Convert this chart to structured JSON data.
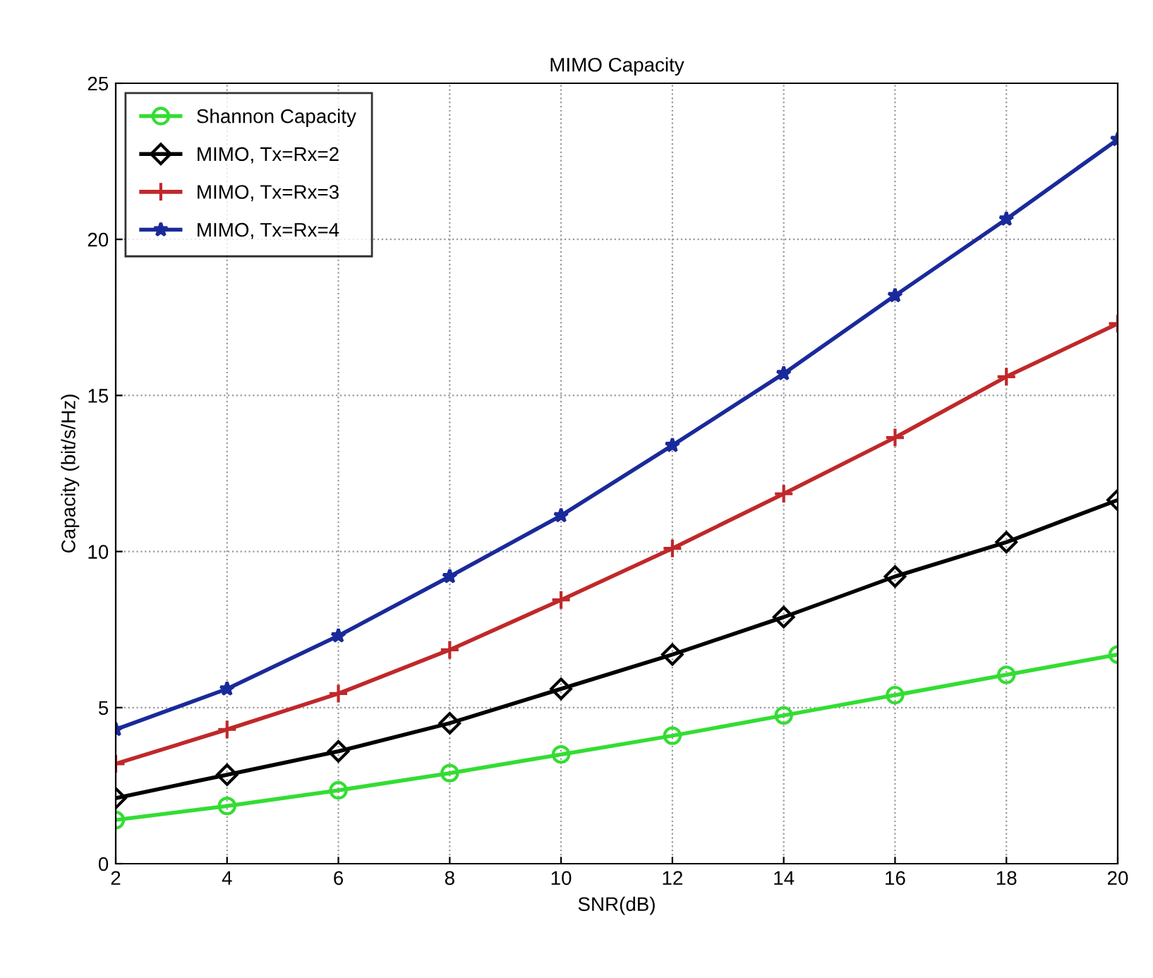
{
  "chart_data": {
    "type": "line",
    "title": "MIMO Capacity",
    "xlabel": "SNR(dB)",
    "ylabel": "Capacity (bit/s/Hz)",
    "x": [
      2,
      4,
      6,
      8,
      10,
      12,
      14,
      16,
      18,
      20
    ],
    "series": [
      {
        "name": "Shannon Capacity",
        "color": "#33dd33",
        "marker": "circle",
        "values": [
          1.4,
          1.85,
          2.35,
          2.9,
          3.5,
          4.1,
          4.75,
          5.4,
          6.05,
          6.7
        ]
      },
      {
        "name": "MIMO, Tx=Rx=2",
        "color": "#000000",
        "marker": "diamond",
        "values": [
          2.1,
          2.85,
          3.6,
          4.5,
          5.6,
          6.7,
          7.9,
          9.2,
          10.3,
          11.65
        ]
      },
      {
        "name": "MIMO, Tx=Rx=3",
        "color": "#c0282a",
        "marker": "cross",
        "values": [
          3.2,
          4.3,
          5.45,
          6.85,
          8.45,
          10.1,
          11.85,
          13.65,
          15.6,
          17.3
        ]
      },
      {
        "name": "MIMO, Tx=Rx=4",
        "color": "#1a2a9a",
        "marker": "star",
        "values": [
          4.3,
          5.6,
          7.3,
          9.2,
          11.15,
          13.4,
          15.7,
          18.2,
          20.65,
          23.2
        ]
      }
    ],
    "xlim": [
      2,
      20
    ],
    "ylim": [
      0,
      25
    ],
    "xticks": [
      2,
      4,
      6,
      8,
      10,
      12,
      14,
      16,
      18,
      20
    ],
    "yticks": [
      0,
      5,
      10,
      15,
      20,
      25
    ],
    "grid": true,
    "legend": "top left",
    "line_style": "solid"
  }
}
